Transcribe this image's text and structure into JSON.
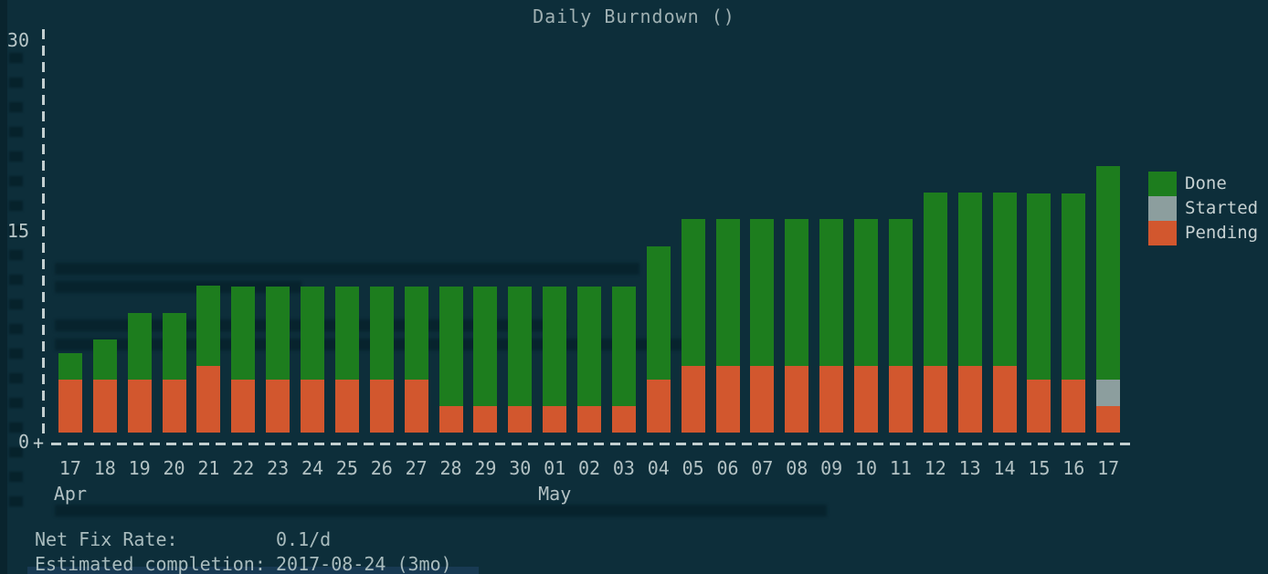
{
  "title": "Daily Burndown ()",
  "colors": {
    "background": "#0d2e3a",
    "done": "#1d7d1e",
    "started": "#8c9e9e",
    "pending": "#d2572e",
    "axis": "#c3cfd0",
    "text": "#b3c2c4"
  },
  "legend": [
    {
      "label": "Done",
      "color_key": "done"
    },
    {
      "label": "Started",
      "color_key": "started"
    },
    {
      "label": "Pending",
      "color_key": "pending"
    }
  ],
  "y_axis": {
    "ticks": [
      "30",
      "15",
      "0"
    ],
    "max": 30
  },
  "chart_data": {
    "type": "bar",
    "stacked": true,
    "title": "Daily Burndown ()",
    "ylim": [
      0,
      30
    ],
    "grid": false,
    "legend_position": "right",
    "categories": [
      "17",
      "18",
      "19",
      "20",
      "21",
      "22",
      "23",
      "24",
      "25",
      "26",
      "27",
      "28",
      "29",
      "30",
      "01",
      "02",
      "03",
      "04",
      "05",
      "06",
      "07",
      "08",
      "09",
      "10",
      "11",
      "12",
      "13",
      "14",
      "15",
      "16",
      "17"
    ],
    "months": [
      {
        "index": 0,
        "label": "Apr"
      },
      {
        "index": 14,
        "label": "May"
      }
    ],
    "series": [
      {
        "name": "Pending",
        "color_key": "pending",
        "values": [
          4,
          4,
          4,
          4,
          5,
          4,
          4,
          4,
          4,
          4,
          4,
          2,
          2,
          2,
          2,
          2,
          2,
          4,
          5,
          5,
          5,
          5,
          5,
          5,
          5,
          5,
          5,
          5,
          4,
          4,
          2
        ]
      },
      {
        "name": "Started",
        "color_key": "started",
        "values": [
          0,
          0,
          0,
          0,
          0,
          0,
          0,
          0,
          0,
          0,
          0,
          0,
          0,
          0,
          0,
          0,
          0,
          0,
          0,
          0,
          0,
          0,
          0,
          0,
          0,
          0,
          0,
          0,
          0,
          0,
          2
        ]
      },
      {
        "name": "Done",
        "color_key": "done",
        "values": [
          2,
          3,
          5,
          5,
          6,
          7,
          7,
          7,
          7,
          7,
          7,
          9,
          9,
          9,
          9,
          9,
          9,
          10,
          11,
          11,
          11,
          11,
          11,
          11,
          11,
          13,
          13,
          13,
          14,
          14,
          16
        ]
      }
    ]
  },
  "footer": {
    "net_fix_rate_label": "Net Fix Rate:",
    "net_fix_rate_value": "0.1/d",
    "completion_label": "Estimated completion:",
    "completion_value": "2017-08-24 (3mo)"
  }
}
